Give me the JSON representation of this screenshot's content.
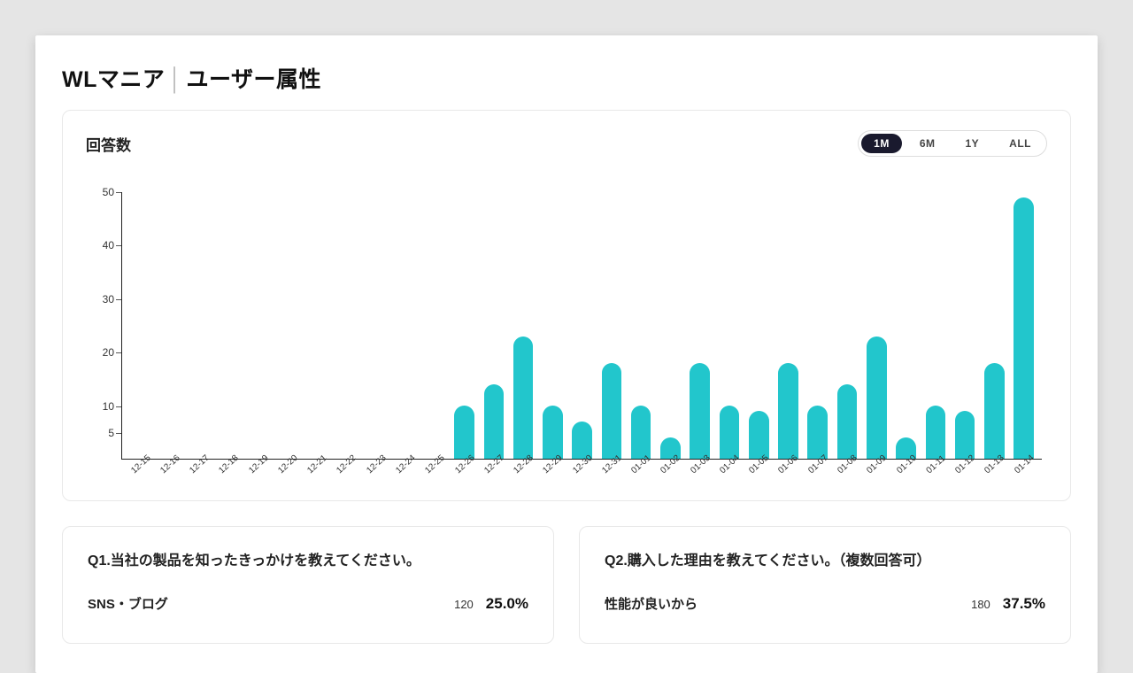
{
  "header": {
    "brand": "WLマニア",
    "section": "ユーザー属性"
  },
  "responses_chart": {
    "title": "回答数",
    "range_options": [
      {
        "label": "1M",
        "active": true
      },
      {
        "label": "6M",
        "active": false
      },
      {
        "label": "1Y",
        "active": false
      },
      {
        "label": "ALL",
        "active": false
      }
    ],
    "type": "bar",
    "bar_color": "#22c6cc",
    "axis_color": "#222222",
    "text_color": "#333333",
    "ylim": [
      0,
      50
    ],
    "ytick_step_major": 10,
    "y_extra_tick": 5,
    "yticks": [
      50,
      40,
      30,
      20,
      10,
      5
    ],
    "bar_width": 0.68,
    "categories": [
      "12-15",
      "12-16",
      "12-17",
      "12-18",
      "12-19",
      "12-20",
      "12-21",
      "12-22",
      "12-23",
      "12-24",
      "12-25",
      "12-26",
      "12-27",
      "12-28",
      "12-29",
      "12-30",
      "12-31",
      "01-01",
      "01-02",
      "01-03",
      "01-04",
      "01-05",
      "01-06",
      "01-07",
      "01-08",
      "01-09",
      "01-10",
      "01-11",
      "01-12",
      "01-13",
      "01-14"
    ],
    "values": [
      0,
      0,
      0,
      0,
      0,
      0,
      0,
      0,
      0,
      0,
      0,
      10,
      14,
      23,
      10,
      7,
      18,
      10,
      4,
      18,
      10,
      9,
      18,
      10,
      14,
      23,
      4,
      10,
      9,
      18,
      49
    ]
  },
  "q1": {
    "title": "Q1.当社の製品を知ったきっかけを教えてください。",
    "answers": [
      {
        "label": "SNS・ブログ",
        "count": "120",
        "percent": "25.0%"
      }
    ]
  },
  "q2": {
    "title": "Q2.購入した理由を教えてください。（複数回答可）",
    "answers": [
      {
        "label": "性能が良いから",
        "count": "180",
        "percent": "37.5%"
      }
    ]
  }
}
